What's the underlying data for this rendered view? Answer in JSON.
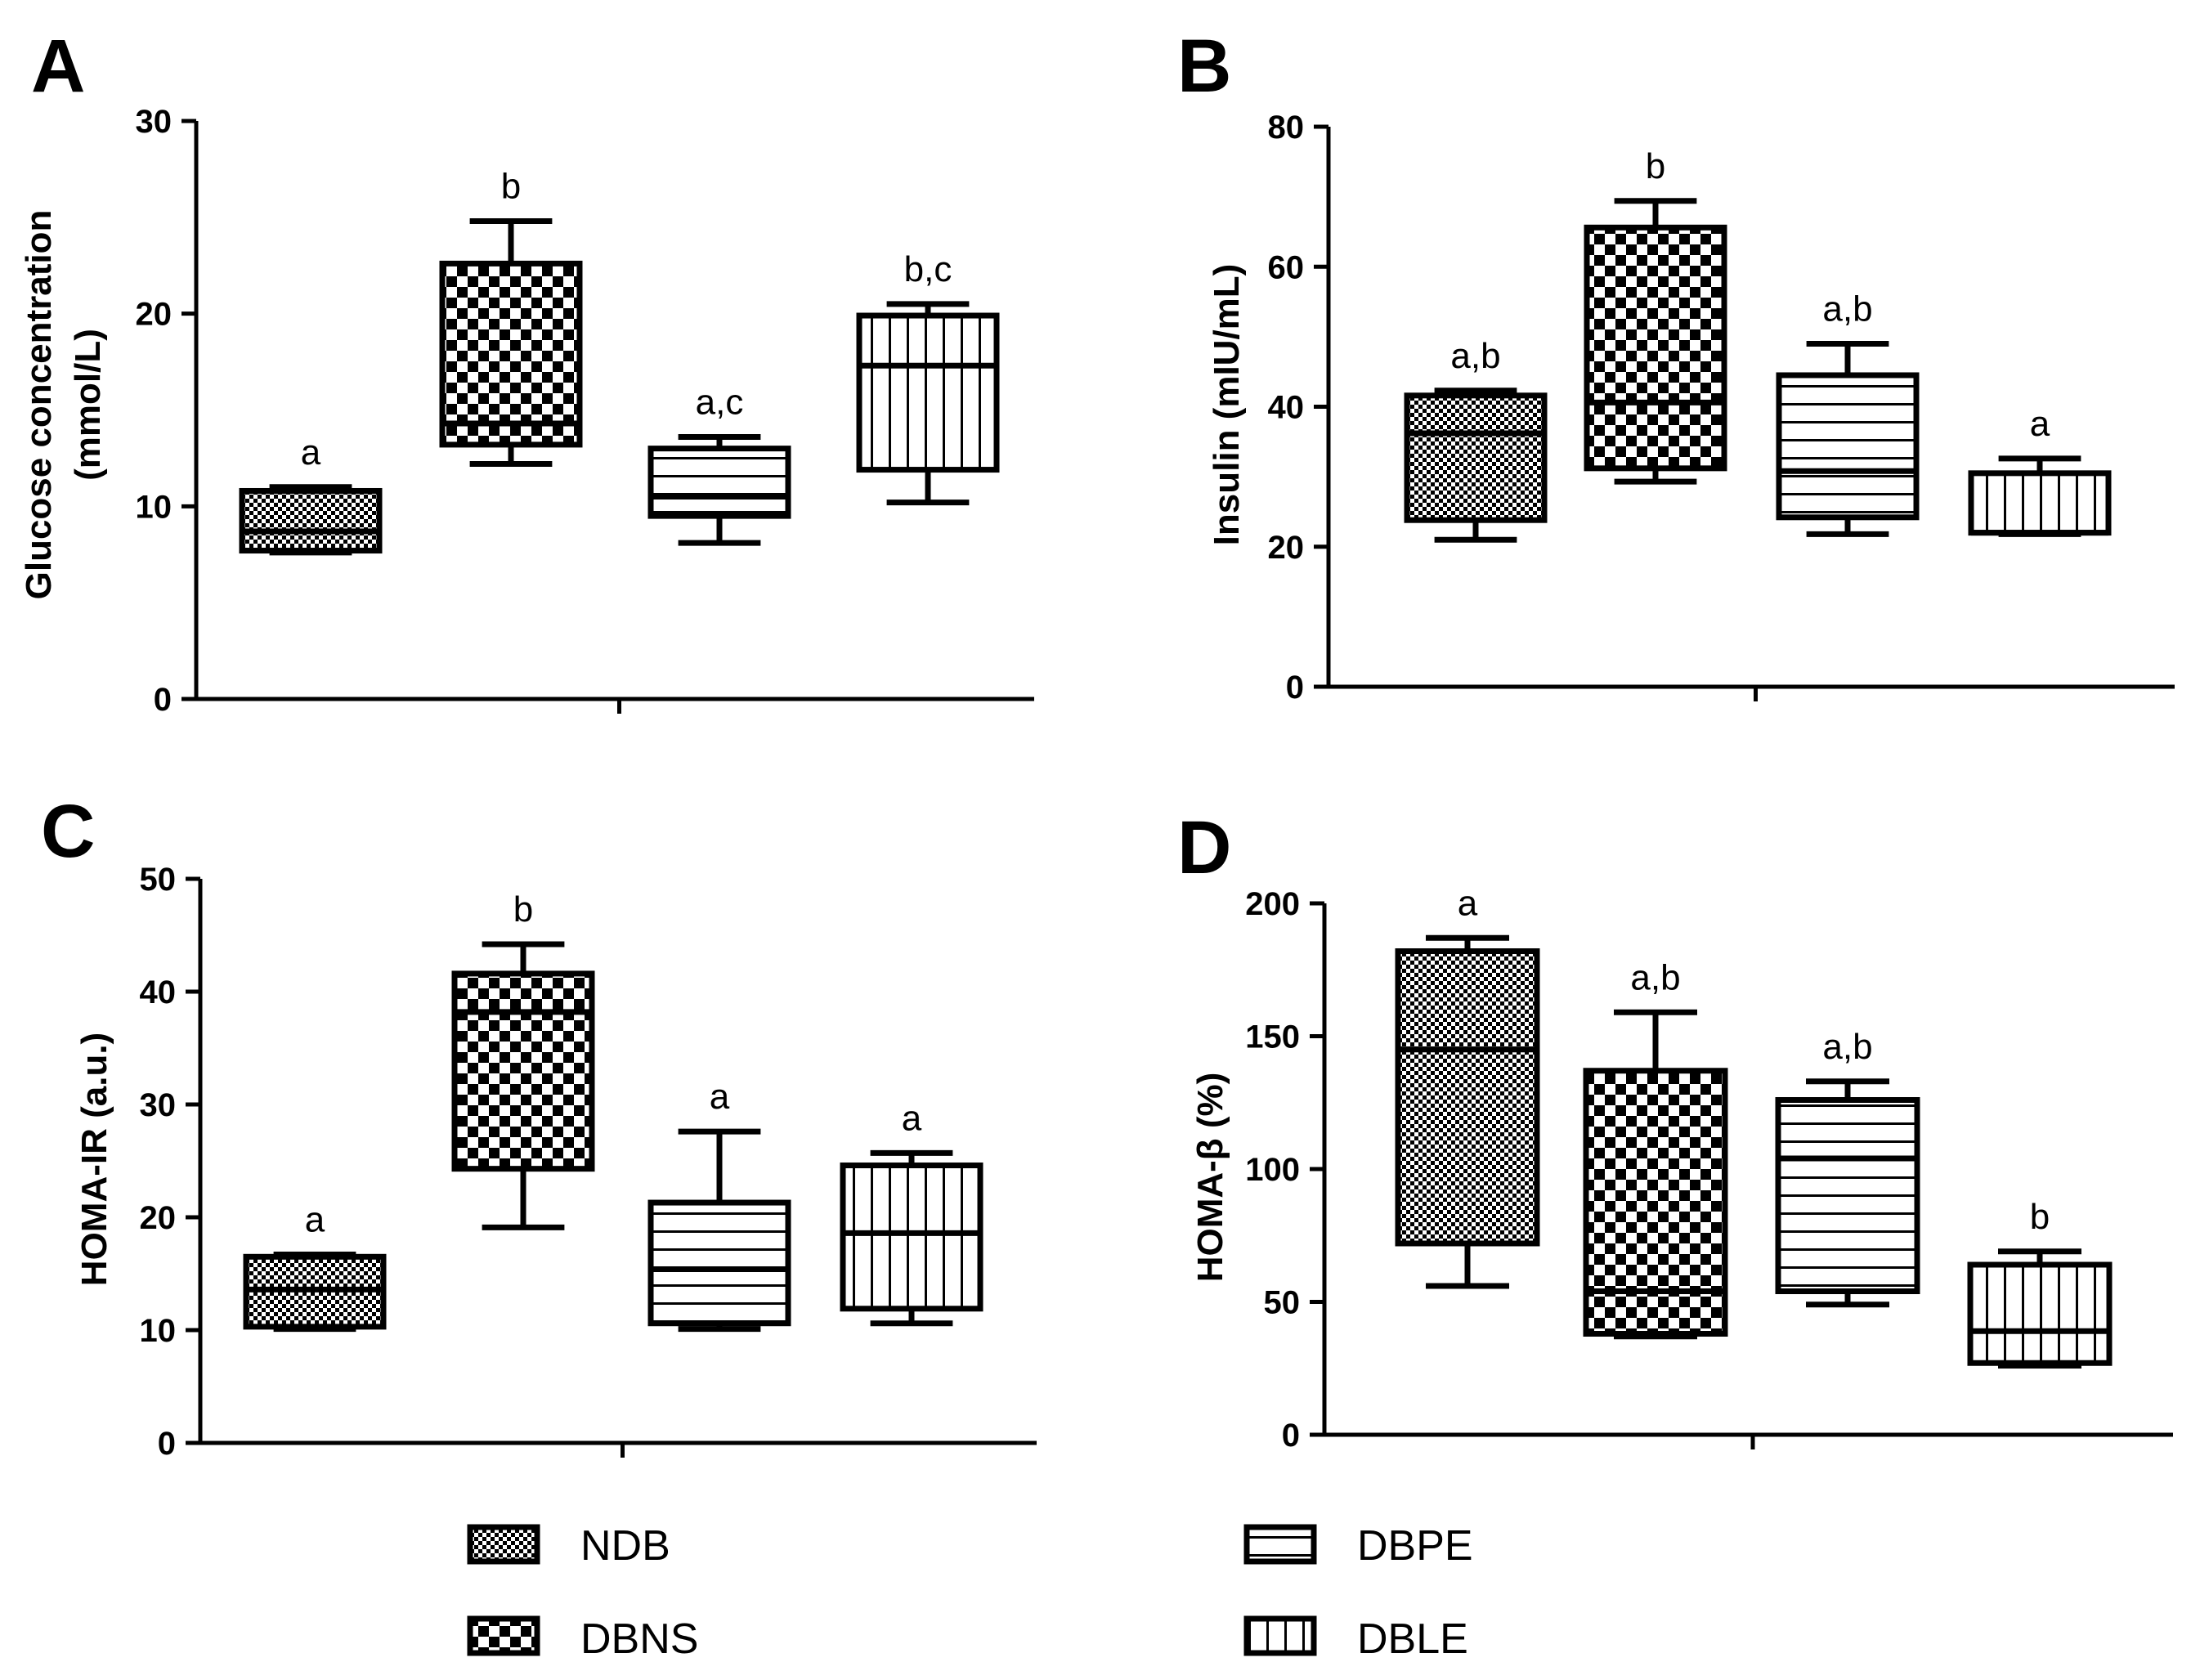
{
  "legend": {
    "items": [
      {
        "label": "NDB",
        "pattern": "fine"
      },
      {
        "label": "DBNS",
        "pattern": "checker"
      },
      {
        "label": "DBPE",
        "pattern": "hlines"
      },
      {
        "label": "DBLE",
        "pattern": "vlines"
      }
    ]
  },
  "chart_data": [
    {
      "type": "box",
      "panel": "A",
      "ylabel": "Glucose concentration\n(mmol/L)",
      "ylim": [
        0,
        30
      ],
      "yticks": [
        0,
        10,
        20,
        30
      ],
      "categories": [
        "NDB",
        "DBNS",
        "DBPE",
        "DBLE"
      ],
      "boxes": [
        {
          "group": "NDB",
          "min": 7.6,
          "q1": 7.7,
          "median": 8.7,
          "q3": 10.8,
          "max": 11.0,
          "annotation": "a"
        },
        {
          "group": "DBNS",
          "min": 12.2,
          "q1": 13.2,
          "median": 14.3,
          "q3": 22.6,
          "max": 24.8,
          "annotation": "b"
        },
        {
          "group": "DBPE",
          "min": 8.1,
          "q1": 9.5,
          "median": 10.5,
          "q3": 13.0,
          "max": 13.6,
          "annotation": "a,c"
        },
        {
          "group": "DBLE",
          "min": 10.2,
          "q1": 11.9,
          "median": 17.3,
          "q3": 19.9,
          "max": 20.5,
          "annotation": "b,c"
        }
      ]
    },
    {
      "type": "box",
      "panel": "B",
      "ylabel": "Insulin (mIU/mL)",
      "ylim": [
        0,
        80
      ],
      "yticks": [
        0,
        20,
        40,
        60,
        80
      ],
      "categories": [
        "NDB",
        "DBNS",
        "DBPE",
        "DBLE"
      ],
      "boxes": [
        {
          "group": "NDB",
          "min": 21.0,
          "q1": 23.8,
          "median": 36.2,
          "q3": 41.6,
          "max": 42.3,
          "annotation": "a,b"
        },
        {
          "group": "DBNS",
          "min": 29.3,
          "q1": 31.2,
          "median": 40.6,
          "q3": 65.6,
          "max": 69.4,
          "annotation": "b"
        },
        {
          "group": "DBPE",
          "min": 21.8,
          "q1": 24.2,
          "median": 30.8,
          "q3": 44.5,
          "max": 49.0,
          "annotation": "a,b"
        },
        {
          "group": "DBLE",
          "min": 21.8,
          "q1": 22.0,
          "median": 22.0,
          "q3": 30.5,
          "max": 32.6,
          "annotation": "a"
        }
      ]
    },
    {
      "type": "box",
      "panel": "C",
      "ylabel": "HOMA-IR (a.u.)",
      "ylim": [
        0,
        50
      ],
      "yticks": [
        0,
        10,
        20,
        30,
        40,
        50
      ],
      "categories": [
        "NDB",
        "DBNS",
        "DBPE",
        "DBLE"
      ],
      "boxes": [
        {
          "group": "NDB",
          "min": 10.1,
          "q1": 10.3,
          "median": 13.6,
          "q3": 16.5,
          "max": 16.7,
          "annotation": "a"
        },
        {
          "group": "DBNS",
          "min": 19.1,
          "q1": 24.3,
          "median": 38.2,
          "q3": 41.6,
          "max": 44.2,
          "annotation": "b"
        },
        {
          "group": "DBPE",
          "min": 10.1,
          "q1": 10.6,
          "median": 15.4,
          "q3": 21.3,
          "max": 27.6,
          "annotation": "a"
        },
        {
          "group": "DBLE",
          "min": 10.6,
          "q1": 11.9,
          "median": 18.6,
          "q3": 24.6,
          "max": 25.7,
          "annotation": "a"
        }
      ]
    },
    {
      "type": "box",
      "panel": "D",
      "ylabel": "HOMA-β (%)",
      "ylim": [
        0,
        200
      ],
      "yticks": [
        0,
        50,
        100,
        150,
        200
      ],
      "categories": [
        "NDB",
        "DBNS",
        "DBPE",
        "DBLE"
      ],
      "boxes": [
        {
          "group": "NDB",
          "min": 56,
          "q1": 72,
          "median": 145,
          "q3": 182,
          "max": 187,
          "annotation": "a"
        },
        {
          "group": "DBNS",
          "min": 37,
          "q1": 38,
          "median": 54,
          "q3": 137,
          "max": 159,
          "annotation": "a,b"
        },
        {
          "group": "DBPE",
          "min": 49,
          "q1": 54,
          "median": 104,
          "q3": 126,
          "max": 133,
          "annotation": "a,b"
        },
        {
          "group": "DBLE",
          "min": 26,
          "q1": 27,
          "median": 39,
          "q3": 64,
          "max": 69,
          "annotation": "b"
        }
      ]
    }
  ]
}
